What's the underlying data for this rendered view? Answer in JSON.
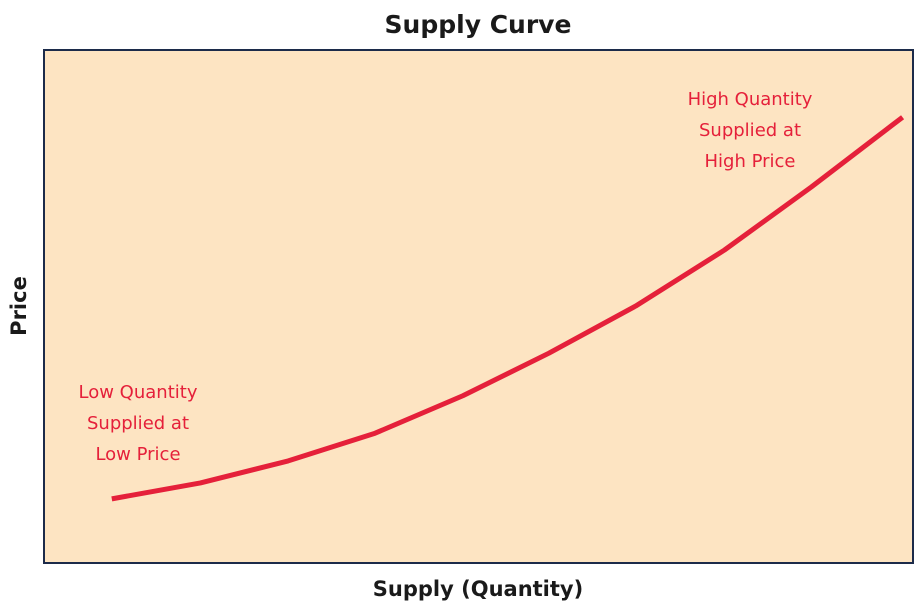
{
  "chart_data": {
    "type": "line",
    "title": "Supply Curve",
    "x_label": "Supply (Quantity)",
    "y_label": "Price",
    "x": [
      7.8,
      18.0,
      28.1,
      38.1,
      48.2,
      58.1,
      68.1,
      78.3,
      88.3,
      98.8
    ],
    "series": [
      {
        "color": "#e5203a",
        "values": [
          12.5,
          15.6,
          19.9,
          25.3,
          32.6,
          40.9,
          50.1,
          61.0,
          73.3,
          86.9
        ]
      }
    ],
    "xlim": [
      0,
      100
    ],
    "ylim": [
      0,
      100
    ],
    "background": "#fde4c2",
    "annotations": [
      {
        "lines": [
          "Low Quantity",
          "Supplied at",
          "Low Price"
        ],
        "color": "#e5203a"
      },
      {
        "lines": [
          "High Quantity",
          "Supplied at",
          "High Price"
        ],
        "color": "#e5203a"
      }
    ]
  }
}
